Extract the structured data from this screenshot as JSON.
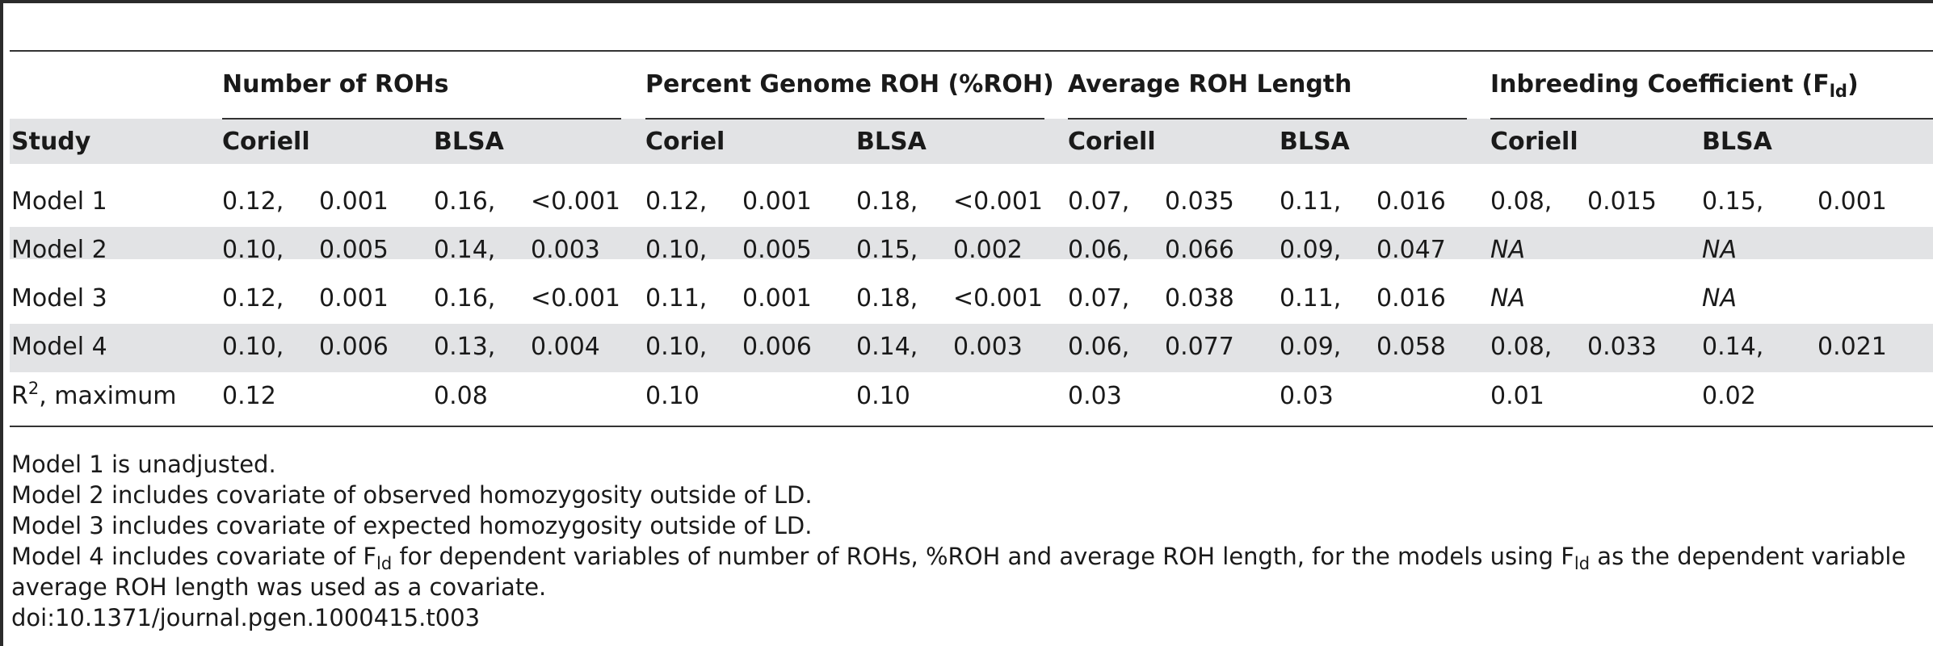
{
  "group_headers": {
    "roh_count": "Number of ROHs",
    "pct_roh": "Percent Genome ROH (%ROH)",
    "avg_len": "Average ROH Length",
    "inbreeding": "Inbreeding Coefficient (F",
    "inbreeding_sub": "ld",
    "inbreeding_close": ")"
  },
  "subheader": {
    "study": "Study",
    "c1": "Coriell",
    "b1": "BLSA",
    "c2": "Coriel",
    "b2": "BLSA",
    "c3": "Coriell",
    "b3": "BLSA",
    "c4": "Coriell",
    "b4": "BLSA"
  },
  "rows": [
    {
      "label": "Model 1",
      "cells": [
        "0.12,",
        "0.001",
        "0.16,",
        "<0.001",
        "0.12,",
        "0.001",
        "0.18,",
        "<0.001",
        "0.07,",
        "0.035",
        "0.11,",
        "0.016",
        "0.08,",
        "0.015",
        "0.15,",
        "0.001"
      ]
    },
    {
      "label": "Model 2",
      "cells": [
        "0.10,",
        "0.005",
        "0.14,",
        "0.003",
        "0.10,",
        "0.005",
        "0.15,",
        "0.002",
        "0.06,",
        "0.066",
        "0.09,",
        "0.047",
        "NA",
        "",
        "NA",
        ""
      ]
    },
    {
      "label": "Model 3",
      "cells": [
        "0.12,",
        "0.001",
        "0.16,",
        "<0.001",
        "0.11,",
        "0.001",
        "0.18,",
        "<0.001",
        "0.07,",
        "0.038",
        "0.11,",
        "0.016",
        "NA",
        "",
        "NA",
        ""
      ]
    },
    {
      "label": "Model 4",
      "cells": [
        "0.10,",
        "0.006",
        "0.13,",
        "0.004",
        "0.10,",
        "0.006",
        "0.14,",
        "0.003",
        "0.06,",
        "0.077",
        "0.09,",
        "0.058",
        "0.08,",
        "0.033",
        "0.14,",
        "0.021"
      ]
    }
  ],
  "r2_row": {
    "label_r": "R",
    "label_sup": "2",
    "label_rest": ", maximum",
    "cells": [
      "0.12",
      "0.08",
      "0.10",
      "0.10",
      "0.03",
      "0.03",
      "0.01",
      "0.02"
    ]
  },
  "notes": {
    "n1": "Model 1 is unadjusted.",
    "n2": "Model 2 includes covariate of observed homozygosity outside of LD.",
    "n3": "Model 3 includes covariate of expected homozygosity outside of LD.",
    "n4_a": "Model 4 includes covariate of F",
    "n4_sub1": "ld",
    "n4_b": " for dependent variables of number of ROHs, %ROH and average ROH length, for the models using F",
    "n4_sub2": "ld",
    "n4_c": " as the dependent variable",
    "n4_line2": "average ROH length was used as a covariate.",
    "doi": "doi:10.1371/journal.pgen.1000415.t003"
  }
}
